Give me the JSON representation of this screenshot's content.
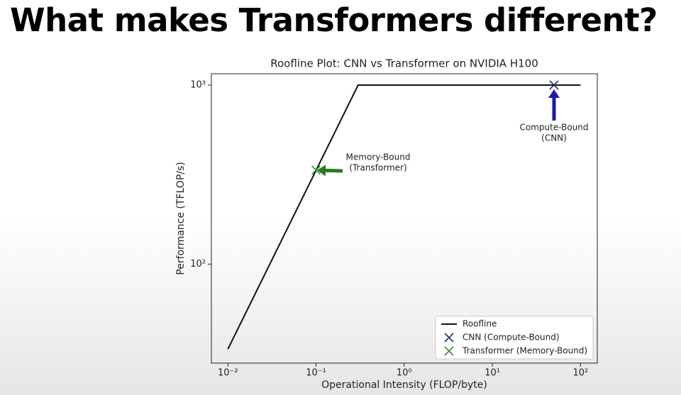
{
  "heading": "What makes Transformers different?",
  "chart_data": {
    "type": "line",
    "title": "Roofline Plot: CNN vs Transformer on NVIDIA H100",
    "x_label": "Operational Intensity (FLOP/byte)",
    "y_label": "Performance (TFLOP/s)",
    "xscale": "log",
    "yscale": "log",
    "xlim": [
      0.0065,
      155
    ],
    "ylim": [
      28,
      1157
    ],
    "xticks": [
      {
        "value": 0.01,
        "label": "10⁻²"
      },
      {
        "value": 0.1,
        "label": "10⁻¹"
      },
      {
        "value": 1,
        "label": "10⁰"
      },
      {
        "value": 10,
        "label": "10¹"
      },
      {
        "value": 100,
        "label": "10²"
      }
    ],
    "yticks": [
      {
        "value": 100,
        "label": "10²"
      },
      {
        "value": 1000,
        "label": "10³"
      }
    ],
    "grid": false,
    "legend": "lower right",
    "series": [
      {
        "name": "Roofline",
        "type": "line",
        "color": "#111111",
        "x": [
          0.01,
          0.3,
          100
        ],
        "values": [
          33.5,
          1000,
          1000
        ]
      },
      {
        "name": "CNN (Compute-Bound)",
        "type": "scatter",
        "color": "#1f2a6b",
        "x": [
          50
        ],
        "values": [
          1000
        ]
      },
      {
        "name": "Transformer (Memory-Bound)",
        "type": "scatter",
        "color": "#2e8b2e",
        "x": [
          0.1
        ],
        "values": [
          335
        ]
      }
    ],
    "annotations": [
      {
        "lines": [
          "Memory-Bound",
          "(Transformer)"
        ],
        "color": "#2a7a1f"
      },
      {
        "lines": [
          "Compute-Bound",
          "(CNN)"
        ],
        "color": "#1a1aa8"
      }
    ]
  }
}
